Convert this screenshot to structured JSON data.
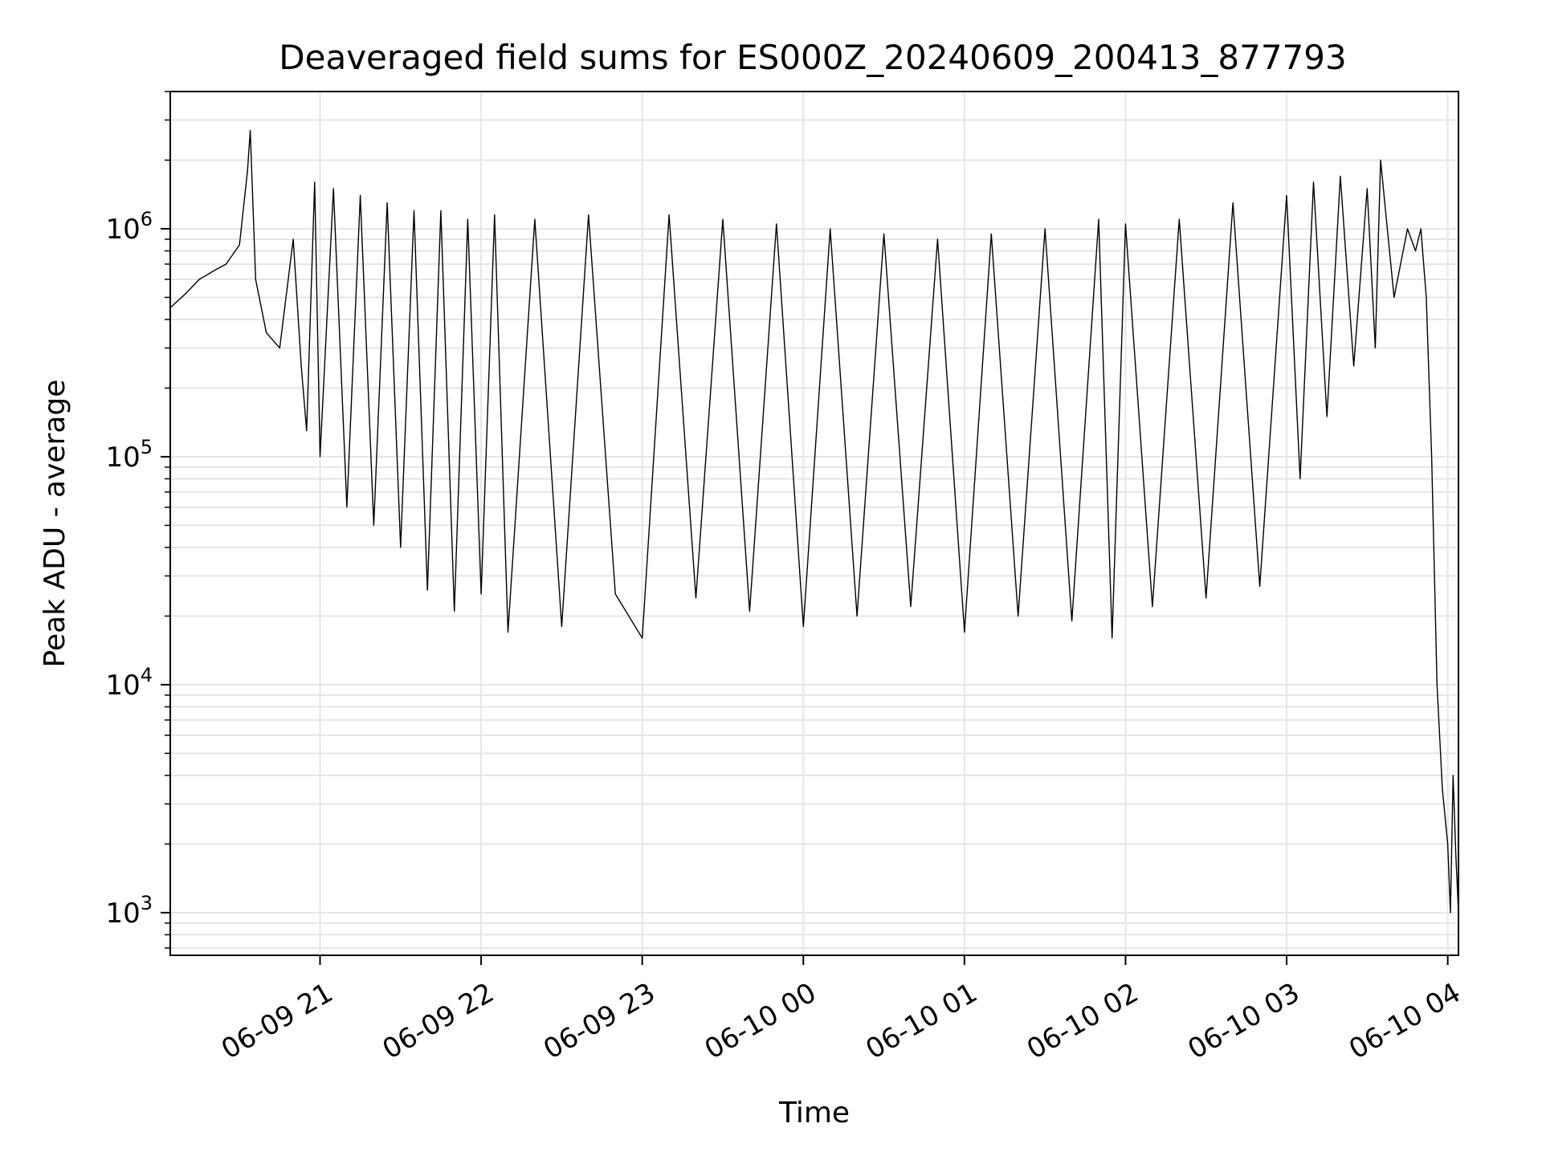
{
  "chart_data": {
    "type": "line",
    "title": "Deaveraged field sums for ES000Z_20240609_200413_877793",
    "xlabel": "Time",
    "ylabel": "Peak ADU - average",
    "yscale": "log",
    "ylim": [
      650,
      4000000
    ],
    "xlim": [
      "2024-06-09 20:04:13",
      "2024-06-10 04:04:00"
    ],
    "grid": true,
    "line_color": "#000000",
    "x_ticks": [
      {
        "time": "2024-06-09 21:00",
        "label": "06-09 21"
      },
      {
        "time": "2024-06-09 22:00",
        "label": "06-09 22"
      },
      {
        "time": "2024-06-09 23:00",
        "label": "06-09 23"
      },
      {
        "time": "2024-06-10 00:00",
        "label": "06-10 00"
      },
      {
        "time": "2024-06-10 01:00",
        "label": "06-10 01"
      },
      {
        "time": "2024-06-10 02:00",
        "label": "06-10 02"
      },
      {
        "time": "2024-06-10 03:00",
        "label": "06-10 03"
      },
      {
        "time": "2024-06-10 04:00",
        "label": "06-10 04"
      }
    ],
    "y_ticks": [
      {
        "value": 1000,
        "base": "10",
        "exp": "3"
      },
      {
        "value": 10000,
        "base": "10",
        "exp": "4"
      },
      {
        "value": 100000,
        "base": "10",
        "exp": "5"
      },
      {
        "value": 1000000,
        "base": "10",
        "exp": "6"
      }
    ],
    "series": [
      {
        "points": [
          [
            "2024-06-09 20:04:13",
            450000
          ],
          [
            "2024-06-09 20:10",
            520000
          ],
          [
            "2024-06-09 20:15",
            600000
          ],
          [
            "2024-06-09 20:20",
            650000
          ],
          [
            "2024-06-09 20:25",
            700000
          ],
          [
            "2024-06-09 20:30",
            850000
          ],
          [
            "2024-06-09 20:33",
            1800000
          ],
          [
            "2024-06-09 20:34",
            2700000
          ],
          [
            "2024-06-09 20:36",
            600000
          ],
          [
            "2024-06-09 20:40",
            350000
          ],
          [
            "2024-06-09 20:45",
            300000
          ],
          [
            "2024-06-09 20:50",
            900000
          ],
          [
            "2024-06-09 20:53",
            250000
          ],
          [
            "2024-06-09 20:55",
            130000
          ],
          [
            "2024-06-09 20:58",
            1600000
          ],
          [
            "2024-06-09 21:00",
            100000
          ],
          [
            "2024-06-09 21:05",
            1500000
          ],
          [
            "2024-06-09 21:10",
            60000
          ],
          [
            "2024-06-09 21:15",
            1400000
          ],
          [
            "2024-06-09 21:20",
            50000
          ],
          [
            "2024-06-09 21:25",
            1300000
          ],
          [
            "2024-06-09 21:30",
            40000
          ],
          [
            "2024-06-09 21:35",
            1200000
          ],
          [
            "2024-06-09 21:40",
            26000
          ],
          [
            "2024-06-09 21:45",
            1200000
          ],
          [
            "2024-06-09 21:50",
            21000
          ],
          [
            "2024-06-09 21:55",
            1100000
          ],
          [
            "2024-06-09 22:00",
            25000
          ],
          [
            "2024-06-09 22:05",
            1150000
          ],
          [
            "2024-06-09 22:10",
            17000
          ],
          [
            "2024-06-09 22:20",
            1100000
          ],
          [
            "2024-06-09 22:30",
            18000
          ],
          [
            "2024-06-09 22:40",
            1150000
          ],
          [
            "2024-06-09 22:50",
            25000
          ],
          [
            "2024-06-09 23:00",
            16000
          ],
          [
            "2024-06-09 23:10",
            1150000
          ],
          [
            "2024-06-09 23:20",
            24000
          ],
          [
            "2024-06-09 23:30",
            1100000
          ],
          [
            "2024-06-09 23:40",
            21000
          ],
          [
            "2024-06-09 23:50",
            1050000
          ],
          [
            "2024-06-10 00:00",
            18000
          ],
          [
            "2024-06-10 00:10",
            1000000
          ],
          [
            "2024-06-10 00:20",
            20000
          ],
          [
            "2024-06-10 00:30",
            950000
          ],
          [
            "2024-06-10 00:40",
            22000
          ],
          [
            "2024-06-10 00:50",
            900000
          ],
          [
            "2024-06-10 01:00",
            17000
          ],
          [
            "2024-06-10 01:10",
            950000
          ],
          [
            "2024-06-10 01:20",
            20000
          ],
          [
            "2024-06-10 01:30",
            1000000
          ],
          [
            "2024-06-10 01:40",
            19000
          ],
          [
            "2024-06-10 01:50",
            1100000
          ],
          [
            "2024-06-10 01:55",
            16000
          ],
          [
            "2024-06-10 02:00",
            1050000
          ],
          [
            "2024-06-10 02:10",
            22000
          ],
          [
            "2024-06-10 02:20",
            1100000
          ],
          [
            "2024-06-10 02:30",
            24000
          ],
          [
            "2024-06-10 02:40",
            1300000
          ],
          [
            "2024-06-10 02:50",
            27000
          ],
          [
            "2024-06-10 03:00",
            1400000
          ],
          [
            "2024-06-10 03:05",
            80000
          ],
          [
            "2024-06-10 03:10",
            1600000
          ],
          [
            "2024-06-10 03:15",
            150000
          ],
          [
            "2024-06-10 03:20",
            1700000
          ],
          [
            "2024-06-10 03:25",
            250000
          ],
          [
            "2024-06-10 03:30",
            1500000
          ],
          [
            "2024-06-10 03:33",
            300000
          ],
          [
            "2024-06-10 03:35",
            2000000
          ],
          [
            "2024-06-10 03:40",
            500000
          ],
          [
            "2024-06-10 03:45",
            1000000
          ],
          [
            "2024-06-10 03:48",
            800000
          ],
          [
            "2024-06-10 03:50",
            1000000
          ],
          [
            "2024-06-10 03:52",
            500000
          ],
          [
            "2024-06-10 03:54",
            100000
          ],
          [
            "2024-06-10 03:56",
            10000
          ],
          [
            "2024-06-10 03:58",
            3500.0
          ],
          [
            "2024-06-10 04:00",
            2000
          ],
          [
            "2024-06-10 04:01",
            1000
          ],
          [
            "2024-06-10 04:02",
            4000
          ],
          [
            "2024-06-10 04:03",
            1800
          ],
          [
            "2024-06-10 04:04",
            1000
          ]
        ]
      }
    ]
  }
}
